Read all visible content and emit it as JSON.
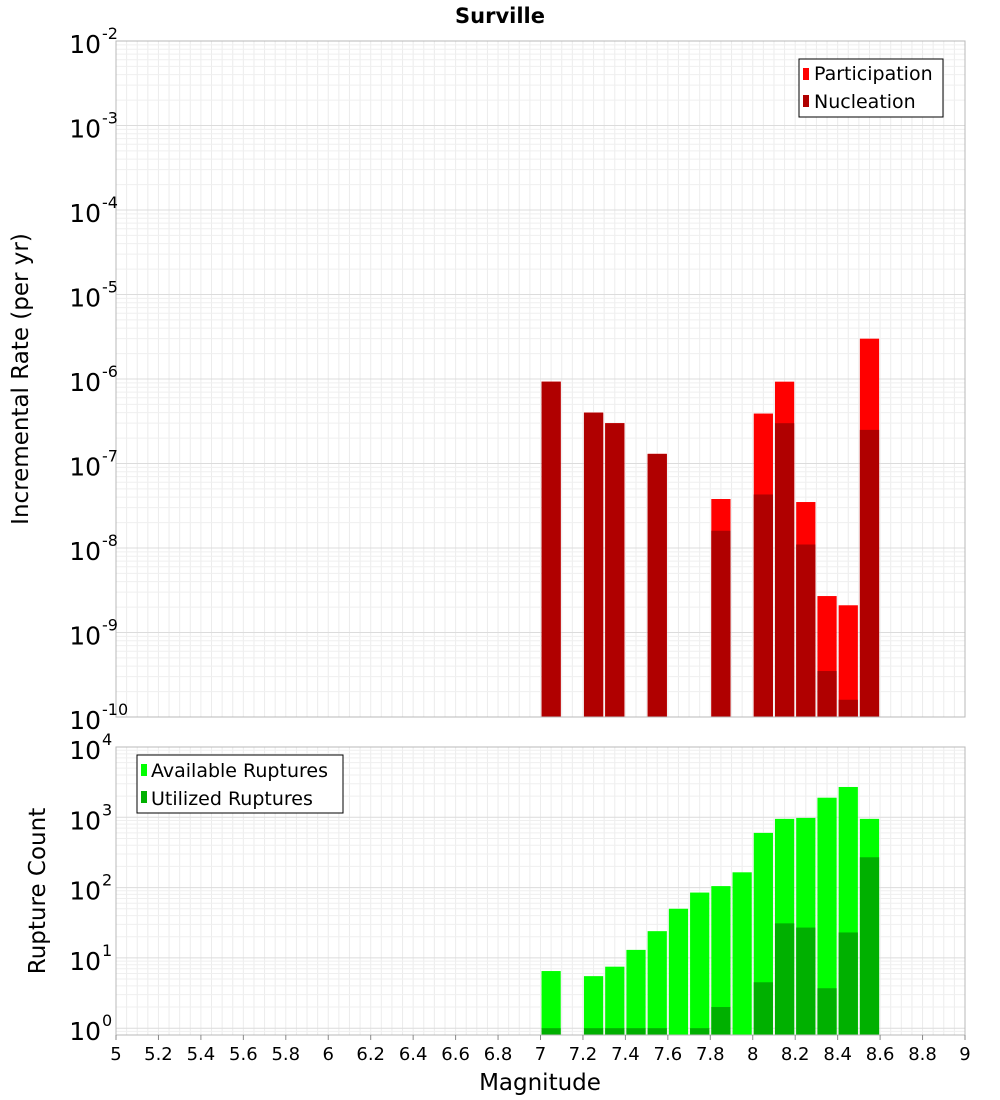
{
  "title": "Surville",
  "chart_data": [
    {
      "type": "bar",
      "title": "Surville",
      "xlabel": "Magnitude",
      "ylabel": "Incremental Rate (per yr)",
      "yscale": "log",
      "xlim": [
        5,
        9
      ],
      "ylim": [
        1e-10,
        0.01
      ],
      "y_decades": [
        -10,
        -9,
        -8,
        -7,
        -6,
        -5,
        -4,
        -3,
        -2
      ],
      "bar_width": 0.1,
      "grid": true,
      "legend_position": "top-right",
      "series": [
        {
          "name": "Participation",
          "color": "#ff0000",
          "points": [
            {
              "x": 7.05,
              "y": 9.3e-07
            },
            {
              "x": 7.25,
              "y": 4e-07
            },
            {
              "x": 7.35,
              "y": 3e-07
            },
            {
              "x": 7.55,
              "y": 1.3e-07
            },
            {
              "x": 7.85,
              "y": 3.8e-08
            },
            {
              "x": 8.05,
              "y": 3.9e-07
            },
            {
              "x": 8.15,
              "y": 9.3e-07
            },
            {
              "x": 8.25,
              "y": 3.5e-08
            },
            {
              "x": 8.35,
              "y": 2.7e-09
            },
            {
              "x": 8.45,
              "y": 2.1e-09
            },
            {
              "x": 8.55,
              "y": 3e-06
            }
          ]
        },
        {
          "name": "Nucleation",
          "color": "#b00000",
          "points": [
            {
              "x": 7.05,
              "y": 9.3e-07
            },
            {
              "x": 7.25,
              "y": 4e-07
            },
            {
              "x": 7.35,
              "y": 3e-07
            },
            {
              "x": 7.55,
              "y": 1.3e-07
            },
            {
              "x": 7.85,
              "y": 1.6e-08
            },
            {
              "x": 8.05,
              "y": 4.3e-08
            },
            {
              "x": 8.15,
              "y": 3e-07
            },
            {
              "x": 8.25,
              "y": 1.1e-08
            },
            {
              "x": 8.35,
              "y": 3.5e-10
            },
            {
              "x": 8.45,
              "y": 1.6e-10
            },
            {
              "x": 8.55,
              "y": 2.5e-07
            }
          ]
        }
      ]
    },
    {
      "type": "bar",
      "xlabel": "Magnitude",
      "ylabel": "Rupture Count",
      "yscale": "log",
      "xlim": [
        5,
        9
      ],
      "ylim": [
        0.8,
        10000
      ],
      "y_decades": [
        0,
        1,
        2,
        3,
        4
      ],
      "x_ticks": [
        "5",
        "5.2",
        "5.4",
        "5.6",
        "5.8",
        "6",
        "6.2",
        "6.4",
        "6.6",
        "6.8",
        "7",
        "7.2",
        "7.4",
        "7.6",
        "7.8",
        "8",
        "8.2",
        "8.4",
        "8.6",
        "8.8",
        "9"
      ],
      "bar_width": 0.1,
      "grid": true,
      "legend_position": "top-left",
      "series": [
        {
          "name": "Available Ruptures",
          "color": "#00ff00",
          "points": [
            {
              "x": 7.05,
              "y": 6.5
            },
            {
              "x": 7.25,
              "y": 5.5
            },
            {
              "x": 7.35,
              "y": 7.5
            },
            {
              "x": 7.45,
              "y": 13
            },
            {
              "x": 7.55,
              "y": 24
            },
            {
              "x": 7.65,
              "y": 50
            },
            {
              "x": 7.75,
              "y": 85
            },
            {
              "x": 7.85,
              "y": 105
            },
            {
              "x": 7.95,
              "y": 165
            },
            {
              "x": 8.05,
              "y": 600
            },
            {
              "x": 8.15,
              "y": 950
            },
            {
              "x": 8.25,
              "y": 980
            },
            {
              "x": 8.35,
              "y": 1900
            },
            {
              "x": 8.45,
              "y": 2700
            },
            {
              "x": 8.55,
              "y": 950
            }
          ]
        },
        {
          "name": "Utilized Ruptures",
          "color": "#00b000",
          "points": [
            {
              "x": 7.05,
              "y": 1
            },
            {
              "x": 7.25,
              "y": 1
            },
            {
              "x": 7.35,
              "y": 1
            },
            {
              "x": 7.45,
              "y": 1
            },
            {
              "x": 7.55,
              "y": 1
            },
            {
              "x": 7.75,
              "y": 1
            },
            {
              "x": 7.85,
              "y": 2
            },
            {
              "x": 8.05,
              "y": 4.5
            },
            {
              "x": 8.15,
              "y": 31
            },
            {
              "x": 8.25,
              "y": 27
            },
            {
              "x": 8.35,
              "y": 3.7
            },
            {
              "x": 8.45,
              "y": 23
            },
            {
              "x": 8.55,
              "y": 270
            }
          ]
        }
      ]
    }
  ]
}
